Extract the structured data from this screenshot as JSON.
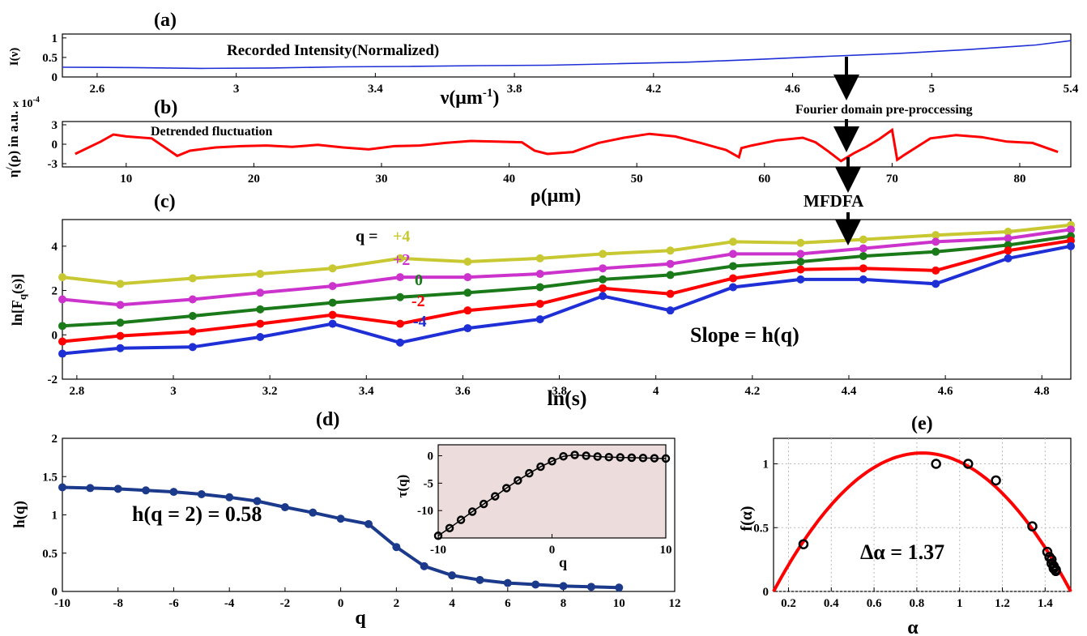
{
  "labels": {
    "panel_a": "(a)",
    "panel_b": "(b)",
    "panel_c": "(c)",
    "panel_d": "(d)",
    "panel_e": "(e)",
    "recorded_intensity": "Recorded Intensity(Normalized)",
    "fourier": "Fourier domain pre-proccessing",
    "detrended": "Detrended fluctuation",
    "mfdfa": "MFDFA",
    "slope": "Slope = h(q)",
    "hq2": "h(q = 2) = 0.58",
    "dalpha": "Δα = 1.37",
    "qeq": "q =",
    "scale_b": "x 10",
    "scale_b_exp": "-4"
  },
  "chart_data": [
    {
      "id": "a",
      "type": "line",
      "xlabel": "ν(μm",
      "xlabel_sup": "-1",
      "xlabel_end": ")",
      "ylabel": "I(ν)",
      "xlim": [
        2.5,
        5.4
      ],
      "ylim": [
        0,
        1.1
      ],
      "xticks": [
        2.6,
        3,
        3.4,
        3.8,
        4.2,
        4.6,
        5,
        5.4
      ],
      "yticks": [
        0,
        0.5,
        1
      ],
      "ytick_labels": [
        "0",
        "0.5",
        "1"
      ],
      "color": "#1f2fd6",
      "x": [
        2.5,
        2.7,
        2.9,
        3.1,
        3.3,
        3.5,
        3.7,
        3.9,
        4.1,
        4.3,
        4.5,
        4.7,
        4.9,
        5.1,
        5.3,
        5.4
      ],
      "y": [
        0.25,
        0.24,
        0.22,
        0.23,
        0.26,
        0.27,
        0.29,
        0.3,
        0.34,
        0.38,
        0.45,
        0.53,
        0.6,
        0.7,
        0.82,
        0.93
      ]
    },
    {
      "id": "b",
      "type": "line",
      "xlabel": "ρ(μm)",
      "ylabel": "η",
      "ylabel_sup": "/",
      "ylabel_end": "(ρ) in a.u.",
      "xlim": [
        5,
        84
      ],
      "ylim": [
        -3.5,
        3.5
      ],
      "xticks": [
        10,
        20,
        30,
        40,
        50,
        60,
        70,
        80
      ],
      "yticks": [
        -3,
        0,
        3
      ],
      "ytick_labels": [
        "-3",
        "0",
        "3"
      ],
      "color": "#ff0000",
      "x": [
        6,
        8,
        9,
        10,
        12,
        14,
        15,
        17,
        19,
        21,
        23,
        25,
        27,
        29,
        31,
        33,
        35,
        37,
        39,
        41,
        42,
        43,
        45,
        47,
        49,
        51,
        53,
        55,
        57,
        58,
        58.2,
        59,
        61,
        63,
        64,
        65,
        66,
        67,
        68,
        69,
        70,
        70.4,
        71,
        73,
        75,
        77,
        79,
        81,
        83
      ],
      "y": [
        -1.5,
        0.4,
        1.5,
        1.2,
        0.9,
        -1.8,
        -1.0,
        -0.5,
        -0.3,
        -0.2,
        -0.4,
        -0.1,
        -0.5,
        -0.8,
        -0.3,
        -0.2,
        0.2,
        0.5,
        0.4,
        0.3,
        -1.0,
        -1.5,
        -1.2,
        0.2,
        1.0,
        1.6,
        1.2,
        0.2,
        -0.9,
        -2.0,
        -0.6,
        -0.2,
        0.6,
        1.0,
        0.3,
        -1.1,
        -2.6,
        -1.4,
        -0.4,
        0.8,
        2.2,
        -2.4,
        -1.6,
        0.9,
        1.4,
        1.1,
        0.4,
        0.2,
        -1.2
      ]
    },
    {
      "id": "c",
      "type": "line",
      "xlabel": "ln(s)",
      "ylabel": "ln[F",
      "ylabel_sub": "q",
      "ylabel_end": "(s)]",
      "xlim": [
        2.77,
        4.86
      ],
      "ylim": [
        -2,
        5.2
      ],
      "xticks": [
        2.8,
        3,
        3.2,
        3.4,
        3.6,
        3.8,
        4,
        4.2,
        4.4,
        4.6,
        4.8
      ],
      "yticks": [
        -2,
        0,
        2,
        4
      ],
      "ytick_labels": [
        "-2",
        "0",
        "2",
        "4"
      ],
      "x": [
        2.77,
        2.89,
        3.04,
        3.18,
        3.33,
        3.47,
        3.61,
        3.76,
        3.89,
        4.03,
        4.16,
        4.3,
        4.43,
        4.58,
        4.73,
        4.86
      ],
      "series": [
        {
          "name": "+4",
          "color": "#c8c832",
          "values": [
            2.6,
            2.3,
            2.55,
            2.75,
            3.0,
            3.45,
            3.3,
            3.45,
            3.65,
            3.8,
            4.2,
            4.15,
            4.3,
            4.5,
            4.65,
            4.95
          ]
        },
        {
          "name": "+2",
          "color": "#cc33cc",
          "values": [
            1.6,
            1.35,
            1.6,
            1.9,
            2.2,
            2.6,
            2.6,
            2.75,
            3.0,
            3.2,
            3.65,
            3.65,
            3.9,
            4.2,
            4.35,
            4.75
          ]
        },
        {
          "name": "0",
          "color": "#1a7a1a",
          "values": [
            0.4,
            0.55,
            0.85,
            1.15,
            1.45,
            1.7,
            1.9,
            2.15,
            2.5,
            2.7,
            3.1,
            3.3,
            3.55,
            3.75,
            4.05,
            4.45
          ]
        },
        {
          "name": "-2",
          "color": "#ff0000",
          "values": [
            -0.3,
            -0.05,
            0.15,
            0.5,
            0.9,
            0.5,
            1.1,
            1.4,
            2.1,
            1.85,
            2.55,
            2.95,
            3.0,
            2.9,
            3.8,
            4.25
          ]
        },
        {
          "name": "-4",
          "color": "#1f2fd6",
          "values": [
            -0.85,
            -0.6,
            -0.55,
            -0.1,
            0.5,
            -0.35,
            0.3,
            0.7,
            1.75,
            1.1,
            2.15,
            2.5,
            2.5,
            2.3,
            3.45,
            4.0
          ]
        }
      ]
    },
    {
      "id": "d",
      "type": "line",
      "xlabel": "q",
      "ylabel": "h(q)",
      "xlim": [
        -10,
        12
      ],
      "ylim": [
        0,
        2
      ],
      "xticks": [
        -10,
        -8,
        -6,
        -4,
        -2,
        0,
        2,
        4,
        6,
        8,
        10,
        12
      ],
      "yticks": [
        0,
        0.5,
        1,
        1.5,
        2
      ],
      "ytick_labels": [
        "0",
        "0.5",
        "1",
        "1.5",
        "2"
      ],
      "color": "#1c3a8c",
      "x": [
        -10,
        -9,
        -8,
        -7,
        -6,
        -5,
        -4,
        -3,
        -2,
        -1,
        0,
        1,
        2,
        3,
        4,
        5,
        6,
        7,
        8,
        9,
        10
      ],
      "y": [
        1.36,
        1.35,
        1.34,
        1.32,
        1.3,
        1.27,
        1.23,
        1.18,
        1.1,
        1.03,
        0.95,
        0.88,
        0.58,
        0.33,
        0.21,
        0.15,
        0.11,
        0.09,
        0.07,
        0.06,
        0.05
      ]
    },
    {
      "id": "d_inset",
      "type": "line",
      "xlabel": "q",
      "ylabel": "τ(q)",
      "xlim": [
        -10,
        10
      ],
      "ylim": [
        -15,
        2
      ],
      "xticks": [
        -10,
        0,
        10
      ],
      "yticks": [
        -10,
        -5,
        0
      ],
      "ytick_labels": [
        "-10",
        "-5",
        "0"
      ],
      "x": [
        -10,
        -9,
        -8,
        -7,
        -6,
        -5,
        -4,
        -3,
        -2,
        -1,
        0,
        1,
        2,
        3,
        4,
        5,
        6,
        7,
        8,
        9,
        10
      ],
      "y": [
        -14.6,
        -13.2,
        -11.7,
        -10.2,
        -8.8,
        -7.4,
        -5.9,
        -4.5,
        -3.2,
        -2.0,
        -1.0,
        -0.1,
        0.15,
        0.0,
        -0.15,
        -0.25,
        -0.3,
        -0.35,
        -0.4,
        -0.45,
        -0.5
      ]
    },
    {
      "id": "e",
      "type": "scatter",
      "xlabel": "α",
      "ylabel": "f(α)",
      "xlim": [
        0.13,
        1.52
      ],
      "ylim": [
        0,
        1.2
      ],
      "xticks": [
        0.2,
        0.4,
        0.6,
        0.8,
        1,
        1.2,
        1.4
      ],
      "xtick_labels": [
        "0.2",
        "0.4",
        "0.6",
        "0.8",
        "1",
        "1.2",
        "1.4"
      ],
      "yticks": [
        0,
        0.5,
        1
      ],
      "ytick_labels": [
        "0",
        "0.5",
        "1"
      ],
      "grid": true,
      "points_x": [
        0.27,
        0.89,
        1.04,
        1.17,
        1.34,
        1.41,
        1.42,
        1.43,
        1.43,
        1.44,
        1.44,
        1.44,
        1.45,
        1.45
      ],
      "points_y": [
        0.37,
        1.0,
        1.0,
        0.87,
        0.51,
        0.31,
        0.27,
        0.25,
        0.22,
        0.2,
        0.19,
        0.18,
        0.17,
        0.16
      ],
      "fit_color": "#ff0000",
      "fit": {
        "x0": 0.13,
        "x1": 1.52,
        "vertex_x": 0.825,
        "vertex_y": 1.085
      }
    }
  ]
}
